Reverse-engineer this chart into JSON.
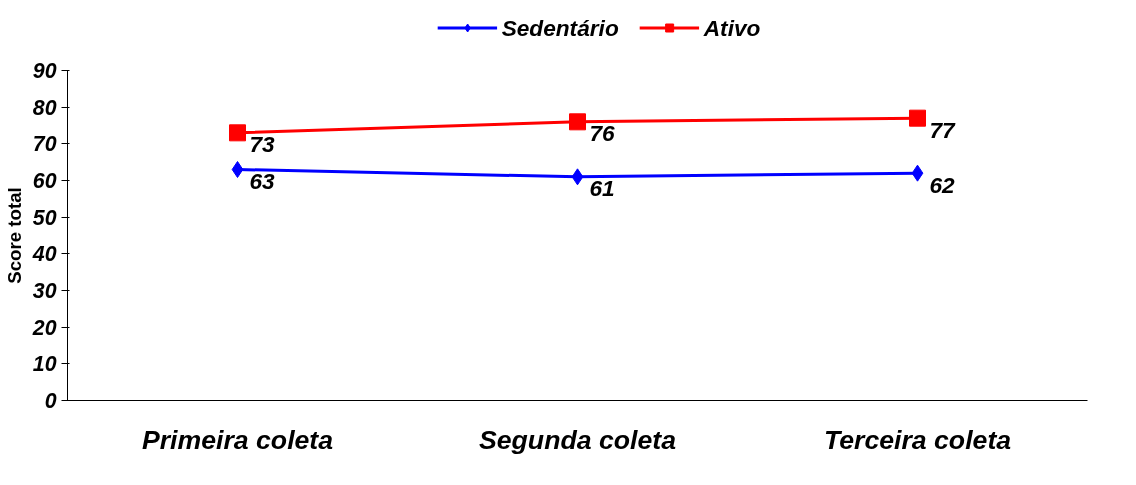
{
  "chart_data": {
    "type": "line",
    "categories": [
      "Primeira coleta",
      "Segunda coleta",
      "Terceira coleta"
    ],
    "ylabel": "Score total",
    "ylim": [
      0,
      90
    ],
    "yticks": [
      0,
      10,
      20,
      30,
      40,
      50,
      60,
      70,
      80,
      90
    ],
    "series": [
      {
        "name": "Sedentário",
        "color": "#0000ff",
        "marker": "diamond",
        "values": [
          63,
          61,
          62
        ]
      },
      {
        "name": "Ativo",
        "color": "#ff0000",
        "marker": "square",
        "values": [
          73,
          76,
          77
        ]
      }
    ],
    "data_labels": true,
    "legend": "top",
    "grid": false,
    "line_style": "solid"
  }
}
